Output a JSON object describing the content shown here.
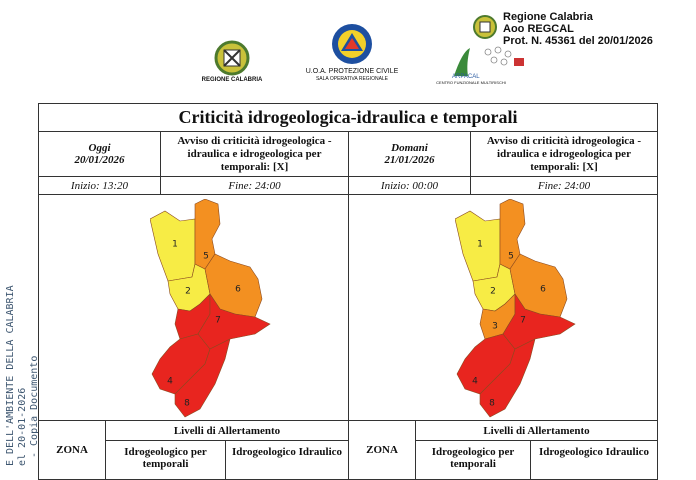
{
  "header": {
    "logos": [
      {
        "label": "REGIONE CALABRIA"
      },
      {
        "label": "U.O.A. PROTEZIONE CIVILE",
        "sublabel": "SALA OPERATIVA REGIONALE"
      },
      {
        "label": "ARPACAL",
        "sublabel": "CENTRO FUNZIONALE MULTIRISCHI"
      }
    ],
    "stamp": [
      "Regione Calabria",
      "Aoo REGCAL",
      "Prot. N. 45361 del 20/01/2026"
    ]
  },
  "watermark": [
    "E DELL'AMBIENTE DELLA CALABRIA",
    "el 20-01-2026",
    "- Copia Documento"
  ],
  "title": "Criticità idrogeologica-idraulica e temporali",
  "days": [
    {
      "day": "Oggi",
      "date": "20/01/2026",
      "notice": "Avviso di criticità idrogeologica - idraulica e idrogeologica per temporali: [X]",
      "start": "Inizio: 13:20",
      "end": "Fine: 24:00",
      "zones": [
        {
          "label": "1",
          "color": "#f7ec45"
        },
        {
          "label": "2",
          "color": "#f7ec45"
        },
        {
          "color": "#e8251f"
        },
        {
          "label": "4",
          "color": "#e8251f"
        },
        {
          "label": "5",
          "color": "#f39021"
        },
        {
          "label": "6",
          "color": "#f39021"
        },
        {
          "label": "7",
          "color": "#e8251f"
        },
        {
          "label": "8",
          "color": "#e8251f"
        }
      ]
    },
    {
      "day": "Domani",
      "date": "21/01/2026",
      "notice": "Avviso di criticità idrogeologica - idraulica e idrogeologica per temporali: [X]",
      "start": "Inizio: 00:00",
      "end": "Fine: 24:00",
      "zones": [
        {
          "label": "1",
          "color": "#f7ec45"
        },
        {
          "label": "2",
          "color": "#f7ec45"
        },
        {
          "label": "3",
          "color": "#f39021"
        },
        {
          "label": "4",
          "color": "#e8251f"
        },
        {
          "label": "5",
          "color": "#f39021"
        },
        {
          "label": "6",
          "color": "#f39021"
        },
        {
          "label": "7",
          "color": "#e8251f"
        },
        {
          "label": "8",
          "color": "#e8251f"
        }
      ]
    }
  ],
  "levels_table": {
    "zone_header": "ZONA",
    "levels_header": "Livelli di Allertamento",
    "columns": [
      "Idrogeologico per temporali",
      "Idrogeologico Idraulico"
    ]
  }
}
